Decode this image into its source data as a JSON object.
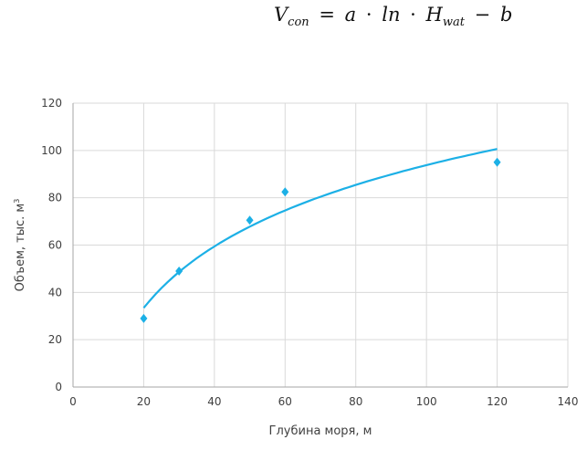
{
  "formula": {
    "lhs": "V",
    "lhs_sub": "con",
    "eq": "=",
    "a": "a",
    "dot1": "·",
    "ln": "ln",
    "dot2": "·",
    "h": "H",
    "h_sub": "wat",
    "minus": "−",
    "b": "b"
  },
  "colors": {
    "series": "#1cb0e6",
    "grid": "#d9d9d9",
    "axis": "#a6a6a6",
    "text": "#404040"
  },
  "chart_data": {
    "type": "scatter",
    "xlabel": "Глубина моря, м",
    "ylabel": "Объем, тыс. м",
    "ylabel_sup": "3",
    "xlim": [
      0,
      140
    ],
    "ylim": [
      0,
      120
    ],
    "x_ticks": [
      "0",
      "20",
      "40",
      "60",
      "80",
      "100",
      "120",
      "140"
    ],
    "y_ticks": [
      "0",
      "20",
      "40",
      "60",
      "80",
      "100",
      "120"
    ],
    "grid": true,
    "legend": "none",
    "series": [
      {
        "kind": "points",
        "x": [
          20,
          30,
          50,
          60,
          120
        ],
        "y": [
          29,
          49,
          70.5,
          82.5,
          95
        ]
      },
      {
        "kind": "trendline",
        "model": "logarithmic",
        "x_range": [
          20,
          120
        ],
        "a": 37.5,
        "b": 78.9
      }
    ]
  }
}
